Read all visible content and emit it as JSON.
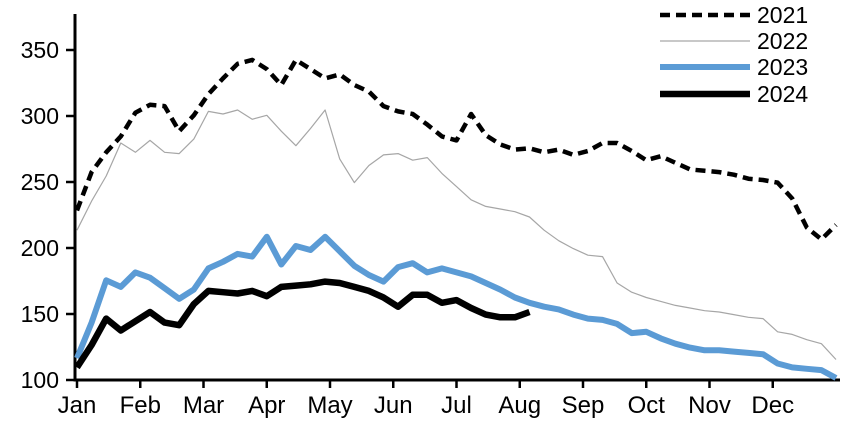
{
  "chart_data": {
    "type": "line",
    "x_unit": "weekly",
    "x_axis": {
      "tick_labels": [
        "Jan",
        "Feb",
        "Mar",
        "Apr",
        "May",
        "Jun",
        "Jul",
        "Aug",
        "Sep",
        "Oct",
        "Nov",
        "Dec"
      ]
    },
    "y_axis": {
      "tick_labels": [
        100,
        150,
        200,
        250,
        300,
        350
      ],
      "range": [
        100,
        376
      ],
      "grid": false
    },
    "legend_position": "top-right",
    "series": [
      {
        "name": "2021",
        "color": "#000000",
        "style": "dashed",
        "width": 4.5,
        "values": [
          227,
          256,
          271,
          283,
          301,
          307,
          306,
          287,
          299,
          315,
          327,
          338,
          341,
          334,
          322,
          341,
          334,
          327,
          330,
          322,
          317,
          306,
          302,
          300,
          292,
          283,
          280,
          300,
          284,
          277,
          273,
          274,
          271,
          273,
          269,
          272,
          278,
          278,
          272,
          265,
          268,
          263,
          258,
          257,
          256,
          254,
          251,
          250,
          248,
          236,
          214,
          205,
          216
        ]
      },
      {
        "name": "2022",
        "color": "#a6a6a6",
        "style": "solid",
        "width": 1.2,
        "values": [
          212,
          234,
          253,
          278,
          271,
          280,
          271,
          270,
          281,
          302,
          300,
          303,
          296,
          299,
          287,
          276,
          289,
          303,
          266,
          248,
          261,
          269,
          270,
          265,
          267,
          255,
          245,
          235,
          230,
          228,
          226,
          222,
          212,
          204,
          198,
          193,
          192,
          172,
          165,
          161,
          158,
          155,
          153,
          151,
          150,
          148,
          146,
          145,
          135,
          133,
          129,
          126,
          114
        ]
      },
      {
        "name": "2023",
        "color": "#5b9bd5",
        "style": "solid",
        "width": 6,
        "values": [
          115,
          142,
          174,
          169,
          180,
          176,
          168,
          160,
          167,
          183,
          188,
          194,
          192,
          207,
          186,
          200,
          197,
          207,
          196,
          185,
          178,
          173,
          184,
          187,
          180,
          183,
          180,
          177,
          172,
          167,
          161,
          157,
          154,
          152,
          148,
          145,
          144,
          141,
          134,
          135,
          130,
          126,
          123,
          121,
          121,
          120,
          119,
          118,
          111,
          108,
          107,
          106,
          100
        ]
      },
      {
        "name": "2024",
        "color": "#000000",
        "style": "solid",
        "width": 6.5,
        "values": [
          108,
          125,
          145,
          136,
          143,
          150,
          142,
          140,
          156,
          166,
          165,
          164,
          166,
          162,
          169,
          170,
          171,
          173,
          172,
          169,
          166,
          161,
          154,
          163,
          163,
          157,
          159,
          153,
          148,
          146,
          146,
          150
        ]
      }
    ]
  }
}
